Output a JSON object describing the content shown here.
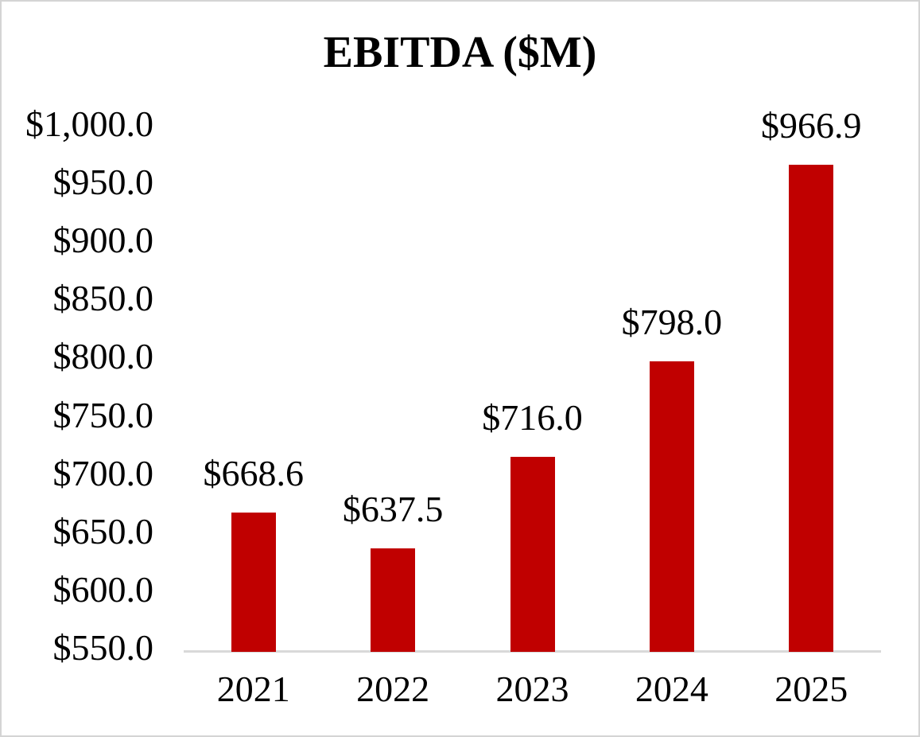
{
  "frame": {
    "background": "#FFFFFF",
    "border_color": "#D4D4D4"
  },
  "chart_data": {
    "type": "bar",
    "title": "EBITDA ($M)",
    "xlabel": "",
    "ylabel": "",
    "categories": [
      "2021",
      "2022",
      "2023",
      "2024",
      "2025"
    ],
    "values": [
      668.6,
      637.5,
      716.0,
      798.0,
      966.9
    ],
    "value_labels": [
      "$668.6",
      "$637.5",
      "$716.0",
      "$798.0",
      "$966.9"
    ],
    "bar_color": "#C00000",
    "text_color": "#000000",
    "axis_line_color": "#D9D9D9",
    "ylim": [
      550,
      1000
    ],
    "y_ticks": [
      {
        "value": 1000,
        "label": "$1,000.0"
      },
      {
        "value": 950,
        "label": "$950.0"
      },
      {
        "value": 900,
        "label": "$900.0"
      },
      {
        "value": 850,
        "label": "$850.0"
      },
      {
        "value": 800,
        "label": "$800.0"
      },
      {
        "value": 750,
        "label": "$750.0"
      },
      {
        "value": 700,
        "label": "$700.0"
      },
      {
        "value": 650,
        "label": "$650.0"
      },
      {
        "value": 600,
        "label": "$600.0"
      },
      {
        "value": 550,
        "label": "$550.0"
      }
    ],
    "grid": false,
    "legend": false,
    "data_labels_shown": true
  }
}
